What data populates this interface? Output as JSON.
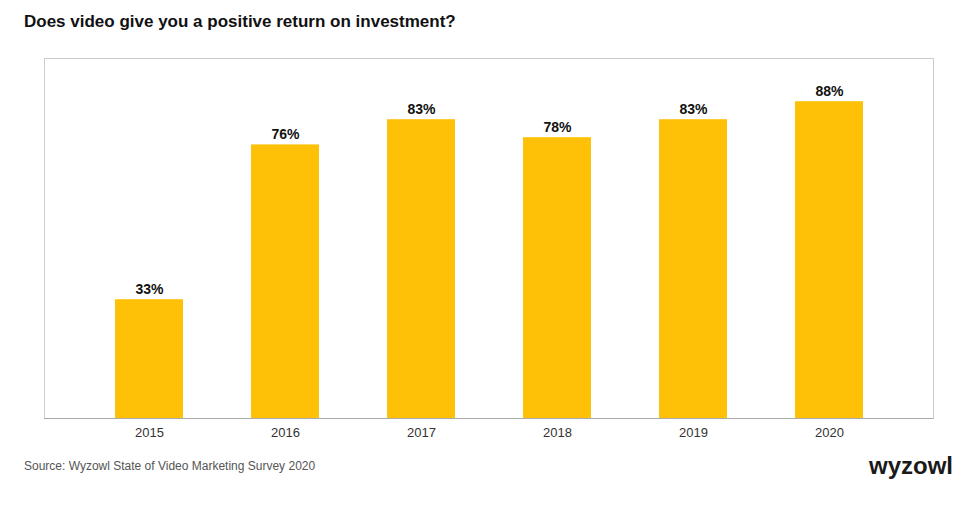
{
  "chart_data": {
    "type": "bar",
    "title": "Does video give you a positive return on investment?",
    "categories": [
      "2015",
      "2016",
      "2017",
      "2018",
      "2019",
      "2020"
    ],
    "values": [
      33,
      76,
      83,
      78,
      83,
      88
    ],
    "value_labels": [
      "33%",
      "76%",
      "83%",
      "78%",
      "83%",
      "88%"
    ],
    "data_labels": true,
    "color": "#FFC107",
    "ylim": [
      0,
      100
    ],
    "grid": false,
    "tick_labels": "x",
    "annotations": [
      "Source: Wyzowl State of Video Marketing Survey 2020",
      "wyzowl"
    ]
  }
}
